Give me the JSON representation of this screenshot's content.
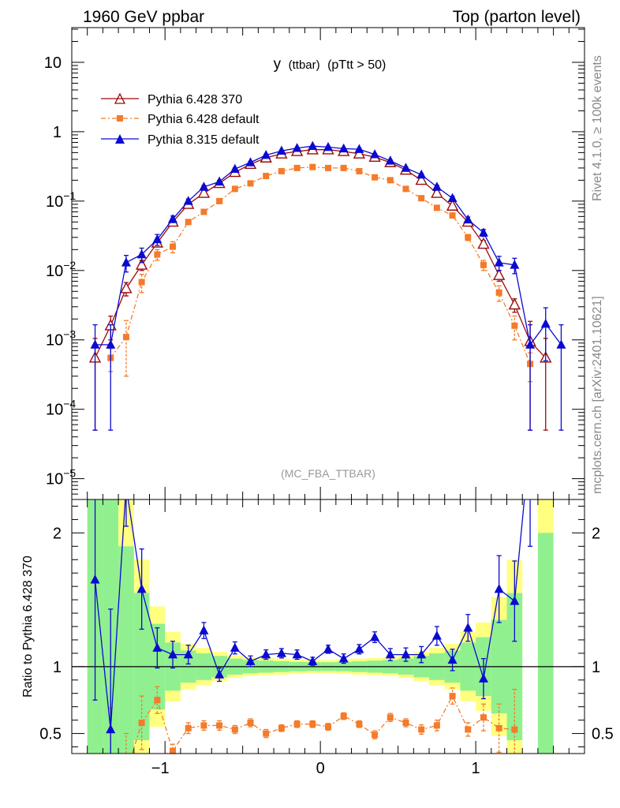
{
  "header": {
    "left": "1960 GeV ppbar",
    "right": "Top (parton level)"
  },
  "side": {
    "rivet": "Rivet 4.1.0, ≥ 100k events",
    "mcplots": "mcplots.cern.ch [arXiv:2401.10621]"
  },
  "chart_data": [
    {
      "type": "line",
      "panel": "main",
      "title": "y",
      "title_sub": "(ttbar)",
      "title_cut": "(pTtt > 50)",
      "watermark": "(MC_FBA_TTBAR)",
      "yscale": "log",
      "ylim_exp": [
        -5.3,
        1.5
      ],
      "xlim": [
        -1.6,
        1.7
      ],
      "y_tick_labels": [
        {
          "mant": "10",
          "exp": ""
        },
        {
          "mant": "1",
          "exp": ""
        },
        {
          "mant": "10",
          "exp": "−1"
        },
        {
          "mant": "10",
          "exp": "−2"
        },
        {
          "mant": "10",
          "exp": "−3"
        },
        {
          "mant": "10",
          "exp": "−4"
        },
        {
          "mant": "10",
          "exp": "−5"
        }
      ],
      "y_tick_exps": [
        1,
        0,
        -1,
        -2,
        -3,
        -4,
        -5
      ],
      "x": [
        -1.45,
        -1.35,
        -1.25,
        -1.15,
        -1.05,
        -0.95,
        -0.85,
        -0.75,
        -0.65,
        -0.55,
        -0.45,
        -0.35,
        -0.25,
        -0.15,
        -0.05,
        0.05,
        0.15,
        0.25,
        0.35,
        0.45,
        0.55,
        0.65,
        0.75,
        0.85,
        0.95,
        1.05,
        1.15,
        1.25,
        1.35,
        1.45,
        1.55
      ],
      "series": [
        {
          "name": "Pythia 6.428 370",
          "color": "#9a0a0a",
          "marker": "triangle-open",
          "dash": "",
          "values": [
            0.00055,
            0.0016,
            0.0055,
            0.012,
            0.025,
            0.05,
            0.09,
            0.13,
            0.18,
            0.26,
            0.34,
            0.42,
            0.48,
            0.52,
            0.55,
            0.55,
            0.52,
            0.48,
            0.43,
            0.36,
            0.28,
            0.2,
            0.13,
            0.085,
            0.05,
            0.024,
            0.0085,
            0.0032,
            0.00095,
            0.00055,
            null
          ],
          "errors": [
            0.0005,
            0.0006,
            0.0012,
            0.002,
            0.003,
            0.004,
            0.005,
            0.006,
            0.007,
            0.008,
            0.009,
            0.01,
            0.011,
            0.011,
            0.011,
            0.011,
            0.011,
            0.011,
            0.01,
            0.009,
            0.008,
            0.007,
            0.006,
            0.005,
            0.004,
            0.003,
            0.0015,
            0.0007,
            0.0009,
            0.0005,
            null
          ]
        },
        {
          "name": "Pythia 6.428 default",
          "color": "#f47b29",
          "marker": "square",
          "dash": "6,3,2,3",
          "values": [
            null,
            0.00055,
            0.0011,
            0.0068,
            0.017,
            0.022,
            0.05,
            0.07,
            0.1,
            0.15,
            0.18,
            0.23,
            0.27,
            0.3,
            0.31,
            0.3,
            0.3,
            0.27,
            0.22,
            0.2,
            0.15,
            0.11,
            0.08,
            0.062,
            0.03,
            0.012,
            0.0048,
            0.0016,
            0.00045,
            null,
            null
          ],
          "errors": [
            null,
            0.0002,
            0.0008,
            0.002,
            0.003,
            0.004,
            0.004,
            0.005,
            0.006,
            0.006,
            0.007,
            0.008,
            0.009,
            0.009,
            0.009,
            0.009,
            0.009,
            0.009,
            0.008,
            0.007,
            0.006,
            0.005,
            0.004,
            0.004,
            0.003,
            0.002,
            0.0012,
            0.0006,
            0.0002,
            null,
            null
          ]
        },
        {
          "name": "Pythia 8.315 default",
          "color": "#0a0ad0",
          "marker": "triangle-filled",
          "dash": "",
          "values": [
            0.00085,
            0.00085,
            0.013,
            0.017,
            0.028,
            0.055,
            0.1,
            0.16,
            0.19,
            0.29,
            0.36,
            0.46,
            0.53,
            0.58,
            0.62,
            0.6,
            0.57,
            0.56,
            0.47,
            0.38,
            0.3,
            0.24,
            0.16,
            0.11,
            0.054,
            0.035,
            0.013,
            0.012,
            0.00085,
            0.0017,
            0.00085
          ],
          "errors": [
            0.0008,
            0.0008,
            0.0035,
            0.004,
            0.005,
            0.006,
            0.007,
            0.008,
            0.009,
            0.01,
            0.011,
            0.012,
            0.013,
            0.013,
            0.014,
            0.014,
            0.013,
            0.013,
            0.012,
            0.011,
            0.01,
            0.009,
            0.008,
            0.007,
            0.005,
            0.004,
            0.003,
            0.003,
            0.0008,
            0.0012,
            0.0008
          ]
        }
      ]
    },
    {
      "type": "line",
      "panel": "ratio",
      "ylabel": "Ratio to Pythia 6.428 370",
      "ylim": [
        0.35,
        2.25
      ],
      "y_ticks": [
        0.5,
        1,
        2
      ],
      "y_tick_labels": [
        "0.5",
        "1",
        "2"
      ],
      "x_ticks": [
        -1,
        0,
        1
      ],
      "x_tick_labels": [
        "−1",
        "0",
        "1"
      ],
      "band_inner_halfwidth": [
        1.5,
        1.5,
        0.9,
        0.55,
        0.32,
        0.18,
        0.12,
        0.1,
        0.08,
        0.06,
        0.05,
        0.045,
        0.04,
        0.035,
        0.033,
        0.033,
        0.035,
        0.04,
        0.045,
        0.05,
        0.06,
        0.08,
        0.1,
        0.12,
        0.18,
        0.22,
        0.35,
        0.55,
        null,
        1.0,
        null
      ],
      "band_outer_halfwidth": [
        2.5,
        2.5,
        1.3,
        0.8,
        0.45,
        0.26,
        0.17,
        0.14,
        0.11,
        0.085,
        0.07,
        0.065,
        0.06,
        0.055,
        0.05,
        0.05,
        0.055,
        0.06,
        0.065,
        0.07,
        0.085,
        0.11,
        0.14,
        0.17,
        0.26,
        0.33,
        0.52,
        0.8,
        null,
        1.6,
        null
      ],
      "series": [
        {
          "name": "Pythia 6.428 default",
          "color": "#f47b29",
          "marker": "square",
          "dash": "6,3,2,3",
          "values": [
            null,
            0.34,
            0.2,
            0.58,
            0.75,
            0.37,
            0.54,
            0.56,
            0.56,
            0.53,
            0.58,
            0.5,
            0.54,
            0.57,
            0.57,
            0.55,
            0.63,
            0.57,
            0.49,
            0.62,
            0.58,
            0.53,
            0.56,
            0.78,
            0.53,
            0.62,
            0.54,
            0.53,
            null,
            null,
            null
          ],
          "errors": [
            null,
            0.35,
            0.3,
            0.2,
            0.1,
            0.05,
            0.04,
            0.035,
            0.035,
            0.03,
            0.03,
            0.03,
            0.025,
            0.025,
            0.025,
            0.025,
            0.025,
            0.025,
            0.03,
            0.03,
            0.03,
            0.035,
            0.04,
            0.06,
            0.05,
            0.1,
            0.18,
            0.3,
            null,
            null,
            null
          ]
        },
        {
          "name": "Pythia 8.315 default",
          "color": "#0a0ad0",
          "marker": "triangle-filled",
          "dash": "",
          "values": [
            1.65,
            0.53,
            2.35,
            1.58,
            1.14,
            1.09,
            1.09,
            1.27,
            0.94,
            1.14,
            1.04,
            1.09,
            1.1,
            1.09,
            1.04,
            1.13,
            1.06,
            1.13,
            1.22,
            1.09,
            1.09,
            1.09,
            1.23,
            1.05,
            1.29,
            0.91,
            1.58,
            1.49,
            2.7,
            null,
            null
          ],
          "errors": [
            0.9,
            0.9,
            0.3,
            0.3,
            0.15,
            0.1,
            0.07,
            0.06,
            0.05,
            0.045,
            0.04,
            0.035,
            0.035,
            0.035,
            0.03,
            0.03,
            0.035,
            0.035,
            0.04,
            0.045,
            0.05,
            0.06,
            0.07,
            0.08,
            0.1,
            0.15,
            0.25,
            0.3,
            0.8,
            null,
            null
          ]
        }
      ]
    }
  ]
}
